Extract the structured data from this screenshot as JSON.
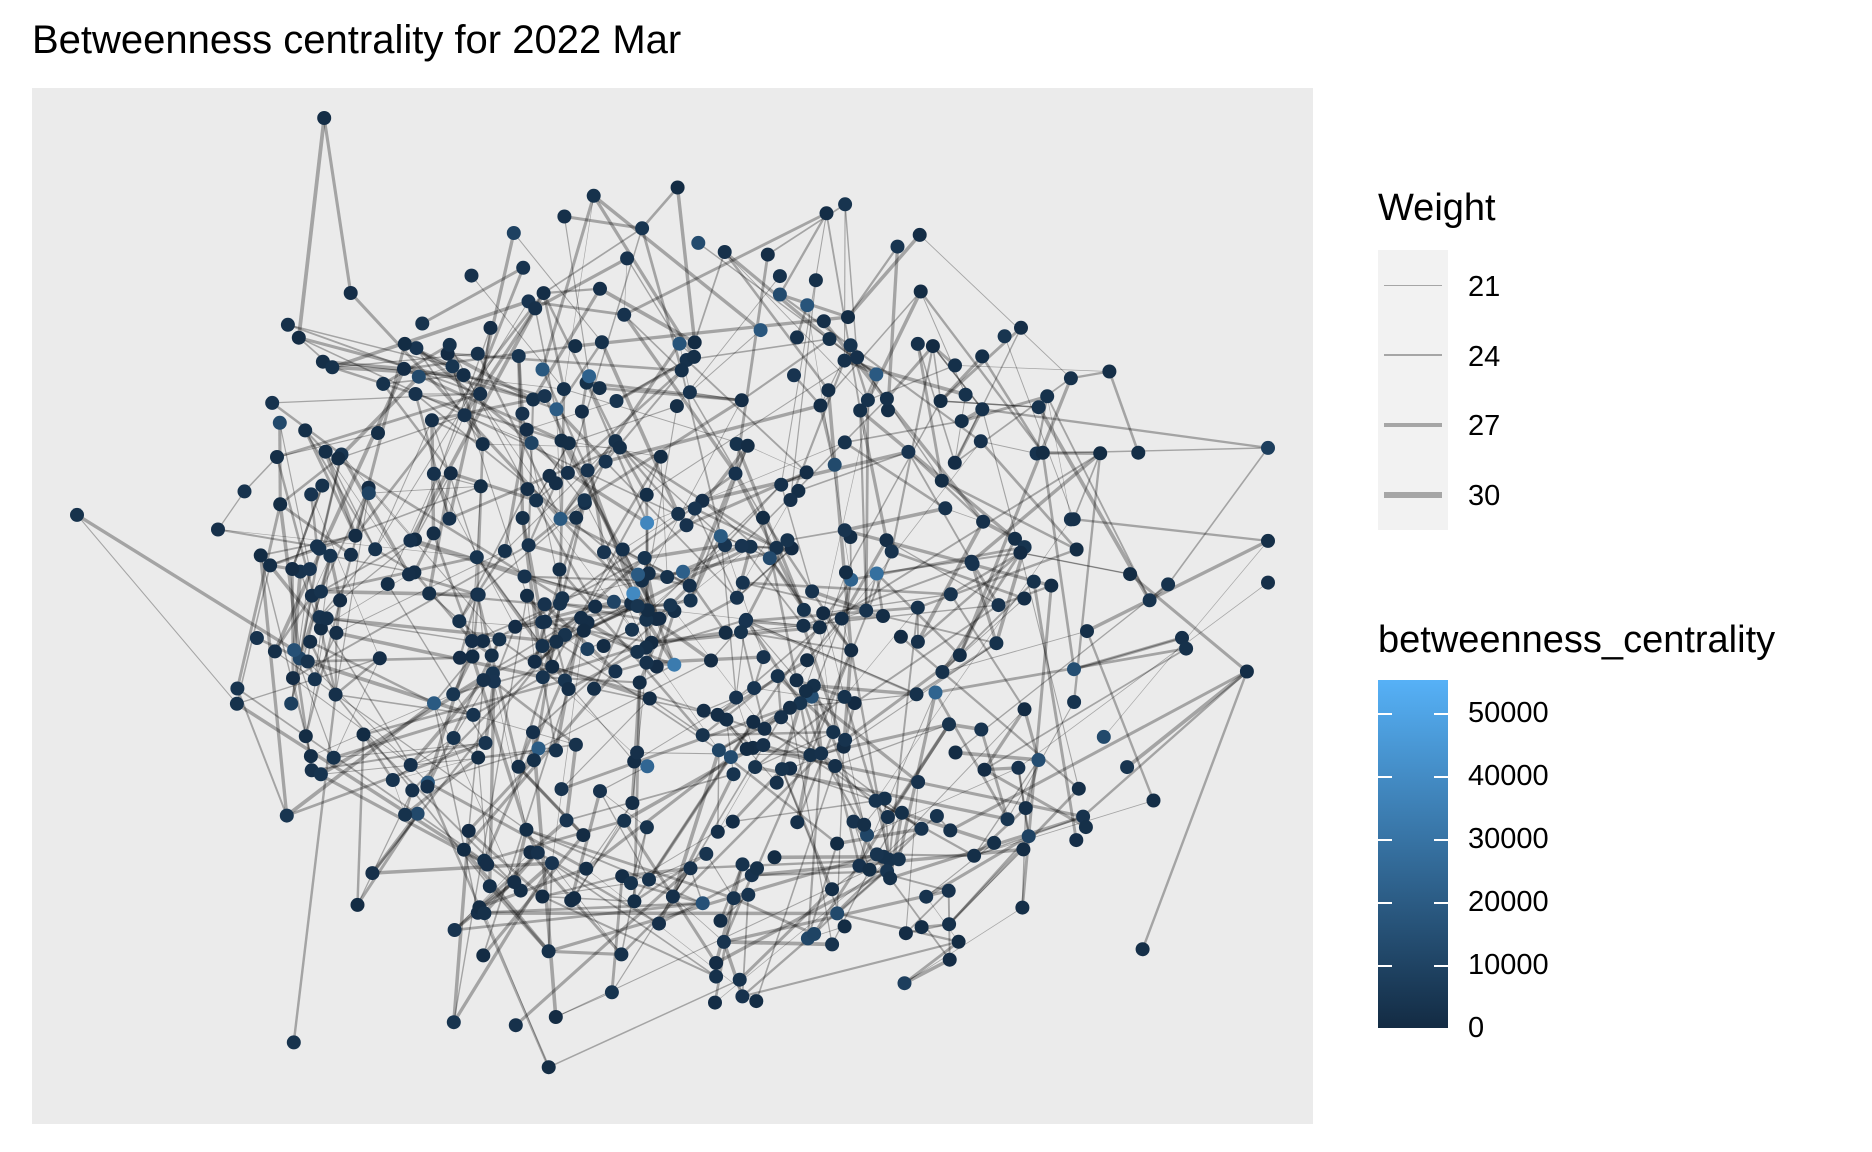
{
  "title": "Betweenness centrality for 2022 Mar",
  "colors": {
    "panel_background": "#ebebeb",
    "edge": "#000000",
    "node_low": "#132b43",
    "node_high": "#56b1f7"
  },
  "legend_weight": {
    "title": "Weight",
    "entries": [
      {
        "label": "21",
        "value": 21
      },
      {
        "label": "24",
        "value": 24
      },
      {
        "label": "27",
        "value": 27
      },
      {
        "label": "30",
        "value": 30
      }
    ]
  },
  "legend_color": {
    "title": "betweenness_centrality",
    "range": [
      0,
      55000
    ],
    "ticks": [
      {
        "label": "50000",
        "value": 50000
      },
      {
        "label": "40000",
        "value": 40000
      },
      {
        "label": "30000",
        "value": 30000
      },
      {
        "label": "20000",
        "value": 20000
      },
      {
        "label": "10000",
        "value": 10000
      },
      {
        "label": "0",
        "value": 0
      }
    ]
  },
  "chart_data": {
    "type": "network",
    "title": "Betweenness centrality for 2022 Mar",
    "node_count": 520,
    "color_variable": "betweenness_centrality",
    "color_range": [
      0,
      55000
    ],
    "edge_width_variable": "Weight",
    "edge_weight_range": [
      21,
      30
    ],
    "grid": false,
    "legend_placement": "right"
  }
}
